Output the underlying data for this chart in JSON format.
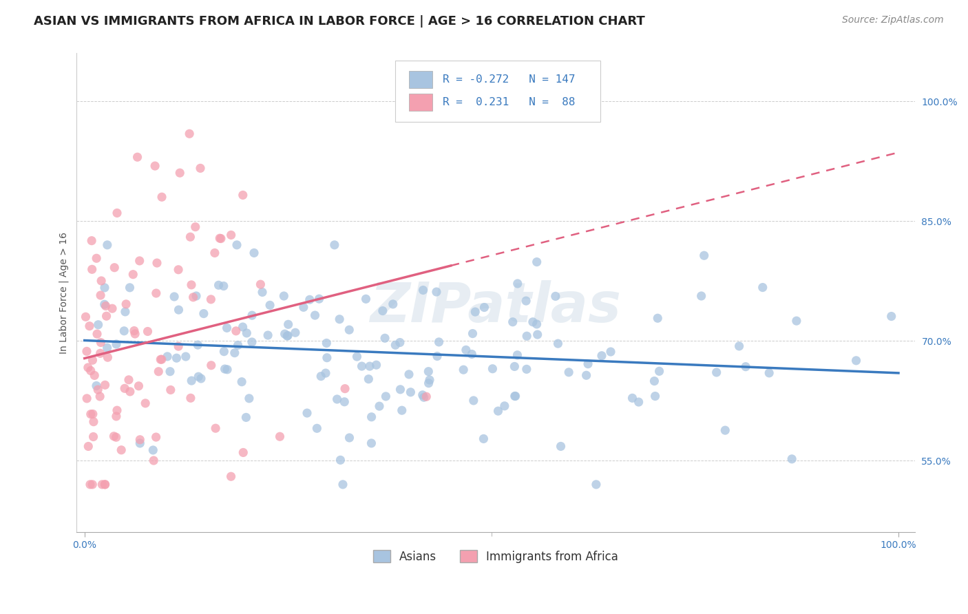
{
  "title": "ASIAN VS IMMIGRANTS FROM AFRICA IN LABOR FORCE | AGE > 16 CORRELATION CHART",
  "source": "Source: ZipAtlas.com",
  "ylabel": "In Labor Force | Age > 16",
  "xlim": [
    -0.01,
    1.02
  ],
  "ylim": [
    0.46,
    1.06
  ],
  "yticks": [
    0.55,
    0.7,
    0.85,
    1.0
  ],
  "ytick_labels": [
    "55.0%",
    "70.0%",
    "85.0%",
    "100.0%"
  ],
  "xtick_labels": [
    "0.0%",
    "100.0%"
  ],
  "xtick_positions": [
    0.0,
    1.0
  ],
  "asian_color": "#a8c4e0",
  "africa_color": "#f4a0b0",
  "asian_line_color": "#3a7abf",
  "africa_line_color": "#e06080",
  "background_color": "#ffffff",
  "grid_color": "#cccccc",
  "watermark": "ZIPatlas",
  "legend_R_asian": "-0.272",
  "legend_N_asian": "147",
  "legend_R_africa": "0.231",
  "legend_N_africa": "88",
  "title_fontsize": 13,
  "axis_label_fontsize": 10,
  "tick_fontsize": 10,
  "legend_fontsize": 12,
  "source_fontsize": 10
}
